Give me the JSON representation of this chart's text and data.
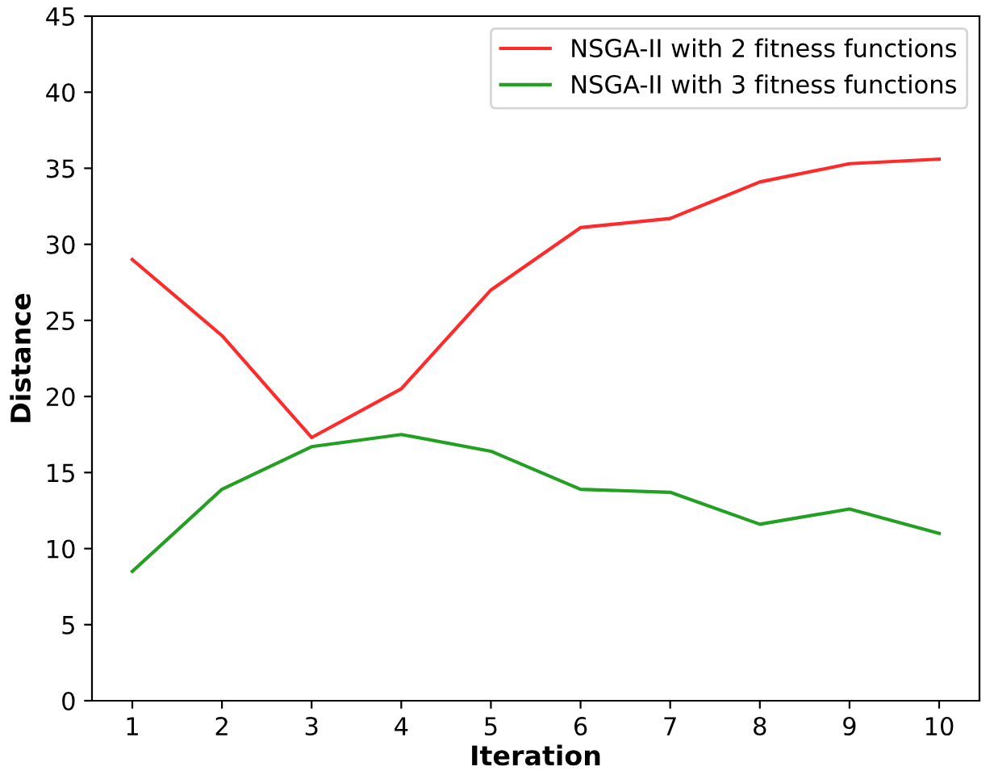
{
  "chart_data": {
    "type": "line",
    "xlabel": "Iteration",
    "ylabel": "Distance",
    "x": [
      1,
      2,
      3,
      4,
      5,
      6,
      7,
      8,
      9,
      10
    ],
    "series": [
      {
        "name": "NSGA-II with 2 fitness functions",
        "color": "#ff2a2a",
        "values": [
          29,
          24,
          17.3,
          20.5,
          27,
          31.1,
          31.7,
          34.1,
          35.3,
          35.6
        ]
      },
      {
        "name": "NSGA-II with 3 fitness functions",
        "color": "#22a022",
        "values": [
          8.5,
          13.9,
          16.7,
          17.5,
          16.4,
          13.9,
          13.7,
          11.6,
          12.6,
          11.0
        ]
      }
    ],
    "xlim": [
      0.55,
      10.45
    ],
    "xticks": [
      1,
      2,
      3,
      4,
      5,
      6,
      7,
      8,
      9,
      10
    ],
    "ylim": [
      0,
      45
    ],
    "yticks": [
      0,
      5,
      10,
      15,
      20,
      25,
      30,
      35,
      40,
      45
    ],
    "legend": "top right",
    "grid": false,
    "marker": "none",
    "line_style": "solid"
  }
}
